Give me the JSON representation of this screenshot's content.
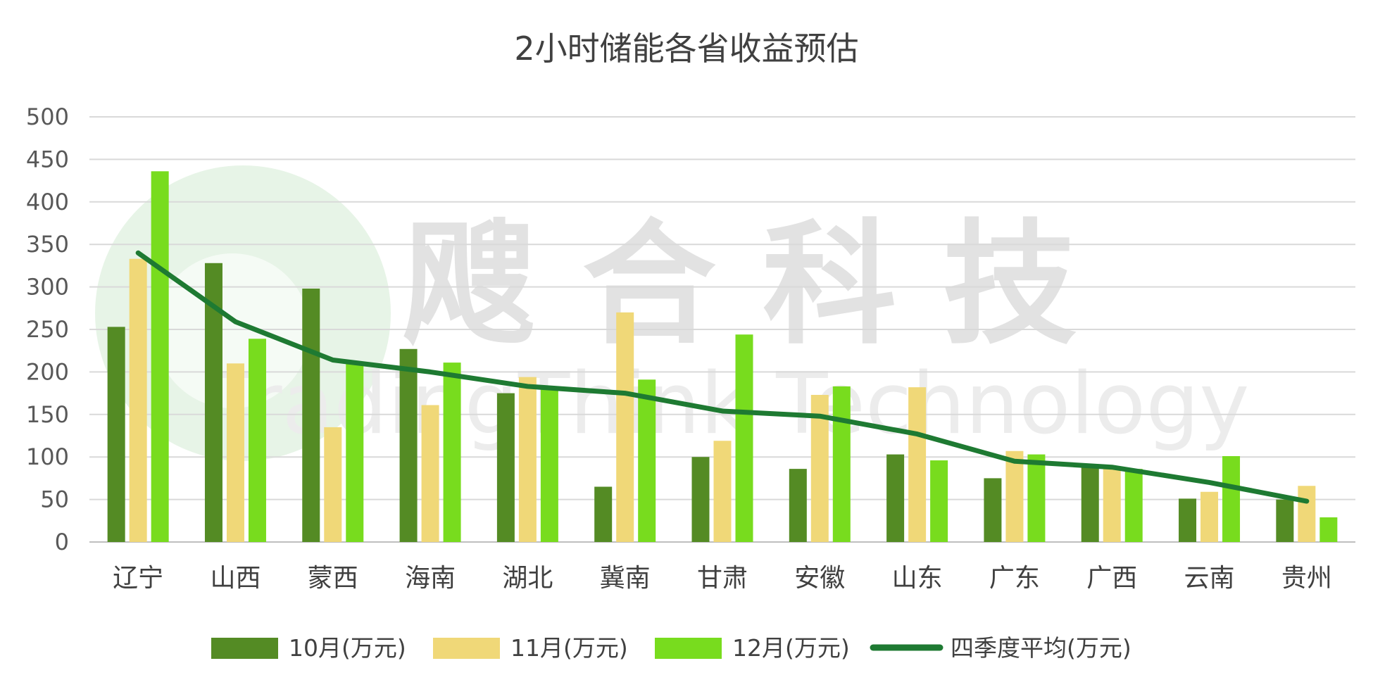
{
  "chart_data": {
    "type": "bar",
    "title": "2小时储能各省收益预估",
    "xlabel": "",
    "ylabel": "",
    "ylim": [
      0,
      500
    ],
    "yticks": [
      0,
      50,
      100,
      150,
      200,
      250,
      300,
      350,
      400,
      450,
      500
    ],
    "grid": true,
    "legend_position": "bottom",
    "categories": [
      "辽宁",
      "山西",
      "蒙西",
      "海南",
      "湖北",
      "冀南",
      "甘肃",
      "安徽",
      "山东",
      "广东",
      "广西",
      "云南",
      "贵州"
    ],
    "series": [
      {
        "name": "10月(万元)",
        "type": "bar",
        "color": "#548b24",
        "values": [
          253,
          328,
          298,
          227,
          175,
          65,
          100,
          86,
          103,
          75,
          90,
          51,
          50
        ]
      },
      {
        "name": "11月(万元)",
        "type": "bar",
        "color": "#f0d878",
        "values": [
          333,
          210,
          135,
          161,
          194,
          270,
          119,
          173,
          182,
          107,
          89,
          59,
          66
        ]
      },
      {
        "name": "12月(万元)",
        "type": "bar",
        "color": "#78dc1e",
        "values": [
          436,
          239,
          211,
          211,
          182,
          191,
          244,
          183,
          96,
          103,
          86,
          101,
          29
        ]
      },
      {
        "name": "四季度平均(万元)",
        "type": "line",
        "color": "#1e7a32",
        "values": [
          340,
          259,
          214,
          200,
          183,
          175,
          154,
          148,
          127,
          95,
          88,
          70,
          48
        ]
      }
    ]
  },
  "watermark": {
    "cn": "飕 合 科 技",
    "en": "TradingThink Technology"
  }
}
